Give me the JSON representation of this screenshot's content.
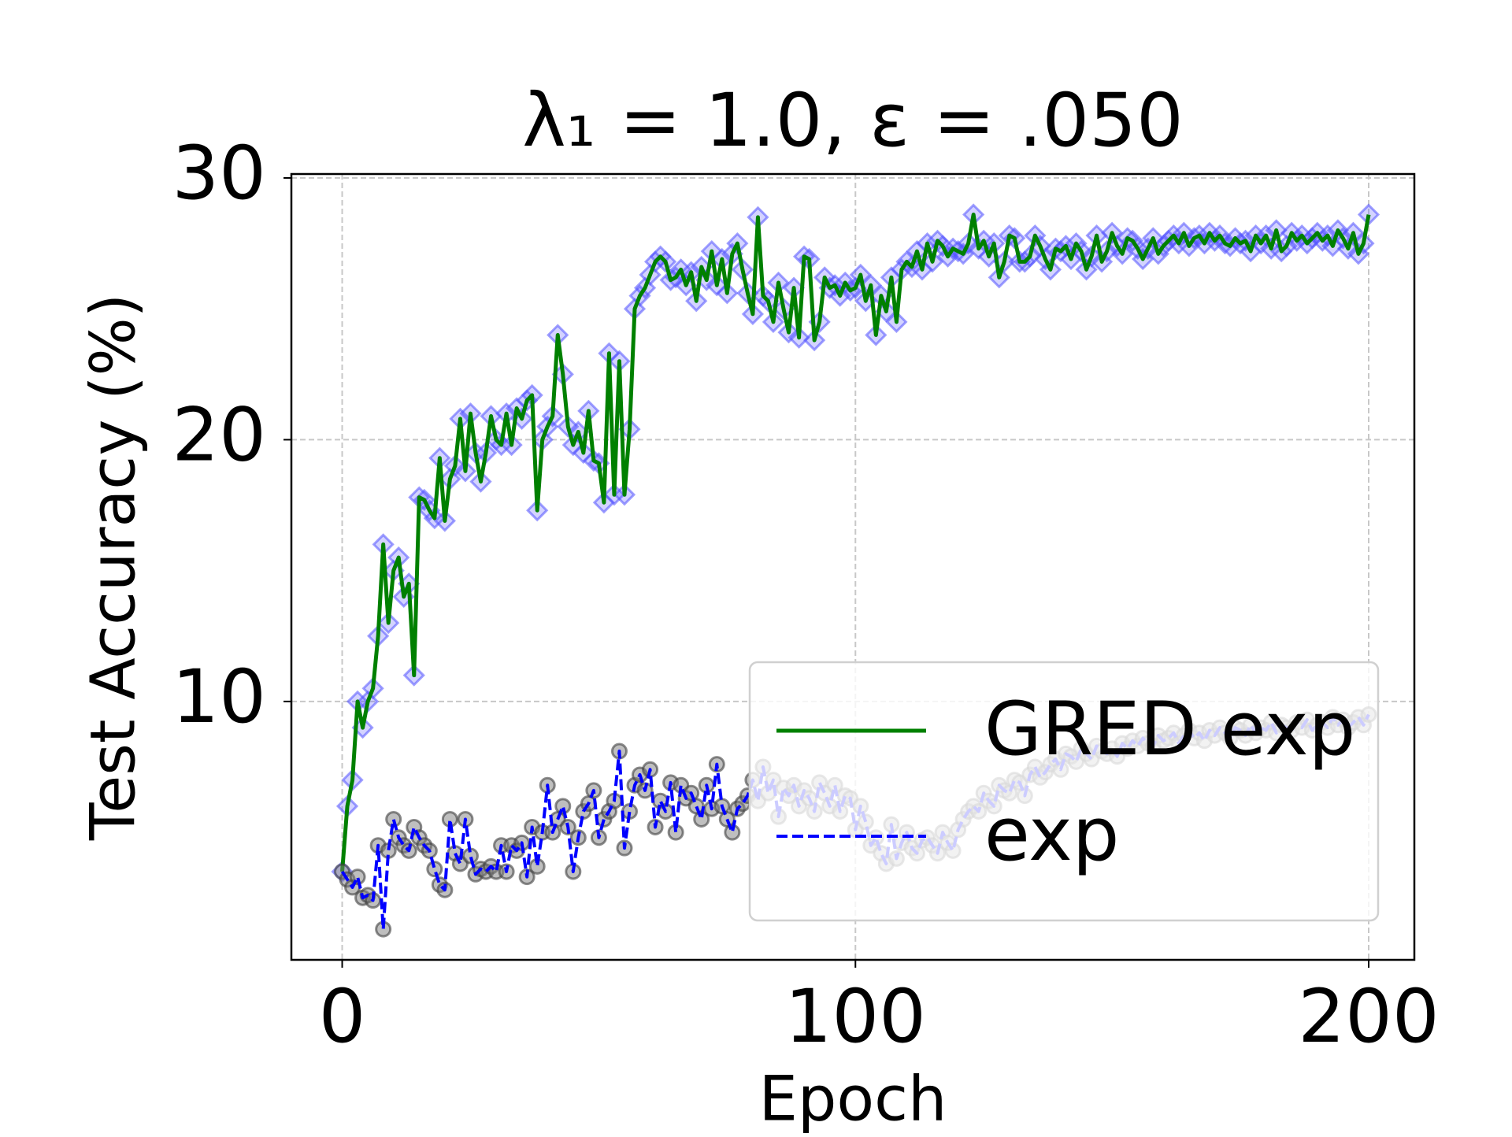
{
  "chart_data": {
    "type": "line",
    "title": "λ₁ = 1.0, ε = .050",
    "x_label": "Epoch",
    "y_label": "Test Accuracy (%)",
    "x": [
      0,
      1,
      2,
      3,
      4,
      5,
      6,
      7,
      8,
      9,
      10,
      11,
      12,
      13,
      14,
      15,
      16,
      17,
      18,
      19,
      20,
      21,
      22,
      23,
      24,
      25,
      26,
      27,
      28,
      29,
      30,
      31,
      32,
      33,
      34,
      35,
      36,
      37,
      38,
      39,
      40,
      41,
      42,
      43,
      44,
      45,
      46,
      47,
      48,
      49,
      50,
      51,
      52,
      53,
      54,
      55,
      56,
      57,
      58,
      59,
      60,
      61,
      62,
      63,
      64,
      65,
      66,
      67,
      68,
      69,
      70,
      71,
      72,
      73,
      74,
      75,
      76,
      77,
      78,
      79,
      80,
      81,
      82,
      83,
      84,
      85,
      86,
      87,
      88,
      89,
      90,
      91,
      92,
      93,
      94,
      95,
      96,
      97,
      98,
      99,
      100,
      101,
      102,
      103,
      104,
      105,
      106,
      107,
      108,
      109,
      110,
      111,
      112,
      113,
      114,
      115,
      116,
      117,
      118,
      119,
      120,
      121,
      122,
      123,
      124,
      125,
      126,
      127,
      128,
      129,
      130,
      131,
      132,
      133,
      134,
      135,
      136,
      137,
      138,
      139,
      140,
      141,
      142,
      143,
      144,
      145,
      146,
      147,
      148,
      149,
      150,
      151,
      152,
      153,
      154,
      155,
      156,
      157,
      158,
      159,
      160,
      161,
      162,
      163,
      164,
      165,
      166,
      167,
      168,
      169,
      170,
      171,
      172,
      173,
      174,
      175,
      176,
      177,
      178,
      179,
      180,
      181,
      182,
      183,
      184,
      185,
      186,
      187,
      188,
      189,
      190,
      191,
      192,
      193,
      194,
      195,
      196,
      197,
      198,
      199,
      200
    ],
    "series": [
      {
        "name": "GRED exp",
        "color": "#008000",
        "marker": "diamond",
        "marker_color": "#5050ff",
        "linestyle": "solid",
        "values": [
          3.5,
          6.0,
          7.0,
          10.0,
          9.0,
          10.0,
          10.5,
          12.5,
          16.0,
          13.0,
          15.0,
          15.5,
          14.0,
          14.5,
          11.0,
          17.8,
          17.7,
          17.3,
          17.0,
          19.3,
          16.9,
          18.5,
          19.0,
          20.8,
          18.8,
          21.0,
          19.5,
          18.4,
          19.5,
          20.9,
          20.0,
          19.8,
          21.0,
          19.8,
          21.2,
          20.8,
          21.5,
          21.7,
          17.3,
          20.0,
          20.5,
          20.9,
          24.0,
          22.5,
          20.5,
          19.8,
          20.3,
          19.5,
          21.1,
          19.2,
          19.1,
          17.6,
          23.3,
          17.9,
          23.0,
          17.9,
          20.4,
          25.0,
          25.5,
          25.8,
          26.3,
          26.8,
          27.0,
          26.8,
          26.1,
          26.2,
          26.5,
          25.9,
          26.4,
          25.3,
          26.6,
          26.1,
          27.2,
          25.9,
          26.9,
          25.6,
          27.1,
          27.5,
          26.5,
          25.6,
          24.8,
          28.5,
          25.5,
          25.3,
          24.5,
          26.0,
          25.0,
          24.1,
          25.8,
          23.9,
          27.0,
          26.9,
          23.8,
          24.5,
          26.2,
          25.8,
          25.9,
          25.5,
          26.0,
          25.7,
          25.8,
          26.3,
          25.3,
          25.9,
          24.0,
          25.5,
          24.9,
          26.2,
          24.5,
          26.5,
          26.8,
          26.6,
          27.2,
          26.5,
          27.5,
          26.8,
          27.6,
          27.4,
          27.0,
          27.3,
          27.2,
          27.1,
          27.5,
          28.6,
          27.3,
          27.6,
          27.0,
          27.5,
          26.2,
          26.8,
          27.8,
          27.7,
          26.8,
          26.8,
          27.0,
          27.8,
          27.4,
          26.9,
          26.5,
          27.3,
          27.2,
          27.4,
          26.9,
          27.5,
          27.2,
          26.5,
          27.0,
          27.8,
          26.8,
          27.2,
          27.9,
          27.4,
          27.1,
          27.7,
          27.6,
          27.3,
          26.9,
          27.3,
          27.7,
          27.1,
          27.4,
          27.6,
          27.8,
          27.5,
          27.9,
          27.4,
          27.7,
          27.8,
          27.5,
          27.9,
          27.6,
          27.8,
          27.5,
          27.4,
          27.7,
          27.5,
          27.6,
          27.2,
          27.8,
          27.5,
          27.8,
          27.3,
          28.0,
          27.2,
          27.4,
          27.9,
          27.6,
          27.8,
          27.5,
          27.7,
          27.9,
          27.6,
          27.8,
          27.4,
          28.0,
          27.7,
          27.3,
          27.9,
          27.1,
          27.5,
          28.6
        ]
      },
      {
        "name": "exp",
        "color": "#0000ff",
        "marker": "circle",
        "marker_color": "#808080",
        "linestyle": "dashed",
        "values": [
          3.5,
          3.2,
          2.9,
          3.3,
          2.5,
          2.6,
          2.4,
          4.5,
          1.3,
          4.3,
          5.5,
          4.8,
          4.5,
          4.3,
          5.2,
          4.8,
          4.5,
          4.3,
          3.6,
          3.0,
          2.8,
          5.5,
          4.2,
          3.8,
          5.5,
          4.1,
          3.4,
          3.6,
          3.5,
          3.7,
          3.5,
          4.5,
          3.5,
          4.5,
          4.3,
          4.6,
          3.3,
          5.2,
          3.7,
          5.0,
          6.8,
          5.0,
          5.5,
          6.0,
          5.2,
          3.5,
          4.8,
          5.8,
          6.1,
          6.6,
          4.8,
          5.5,
          5.8,
          6.2,
          8.1,
          4.4,
          5.8,
          6.8,
          7.2,
          6.6,
          7.4,
          5.2,
          6.2,
          5.8,
          6.9,
          5.0,
          6.8,
          6.3,
          6.5,
          6.0,
          5.5,
          6.8,
          5.9,
          7.6,
          6.0,
          5.5,
          5.0,
          5.9,
          6.1,
          6.4,
          7.0,
          6.2,
          7.5,
          6.5,
          7.0,
          5.6,
          6.7,
          6.4,
          6.8,
          6.0,
          6.6,
          6.3,
          5.8,
          6.9,
          6.5,
          6.0,
          6.8,
          5.8,
          6.4,
          6.3,
          5.1,
          6.0,
          5.4,
          4.5,
          4.8,
          4.2,
          3.8,
          5.3,
          4.0,
          4.6,
          5.0,
          4.4,
          4.2,
          4.7,
          4.8,
          4.5,
          4.2,
          5.0,
          4.6,
          4.3,
          5.1,
          5.5,
          5.8,
          6.0,
          5.8,
          6.5,
          6.2,
          6.0,
          6.8,
          6.6,
          6.5,
          7.0,
          6.9,
          6.4,
          7.2,
          7.5,
          7.1,
          7.3,
          7.6,
          7.8,
          7.4,
          8.0,
          7.9,
          7.7,
          8.2,
          8.0,
          7.8,
          8.3,
          8.1,
          8.0,
          8.2,
          7.9,
          8.4,
          8.2,
          8.5,
          8.3,
          8.6,
          8.4,
          8.3,
          8.7,
          8.5,
          8.6,
          8.8,
          8.4,
          8.7,
          8.9,
          8.6,
          8.8,
          8.5,
          8.9,
          8.7,
          9.0,
          8.8,
          8.6,
          9.0,
          8.9,
          8.7,
          9.1,
          8.8,
          9.0,
          8.9,
          9.2,
          8.8,
          9.1,
          9.0,
          8.9,
          9.2,
          9.0,
          9.3,
          8.9,
          9.1,
          9.2,
          9.0,
          9.4,
          9.1,
          9.3,
          9.0,
          9.2,
          9.4,
          9.1,
          9.5
        ]
      }
    ],
    "xlim": [
      -9.9,
      208.9
    ],
    "ylim": [
      0.13,
      30.15
    ],
    "xticks": [
      0,
      100,
      200
    ],
    "yticks": [
      10,
      20,
      30
    ],
    "grid": true,
    "legend": "lower right"
  }
}
